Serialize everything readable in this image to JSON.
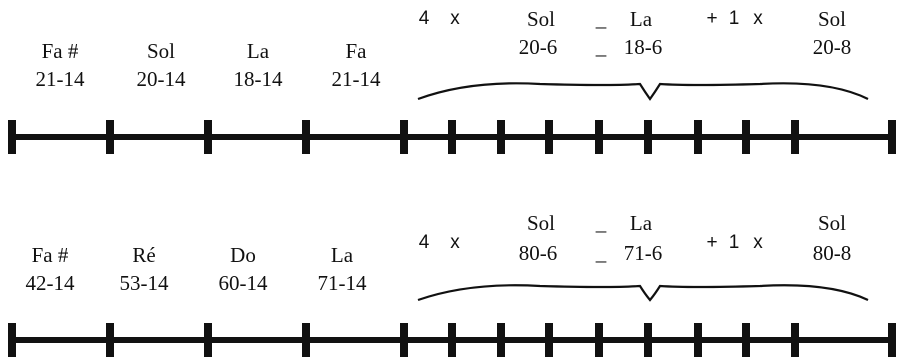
{
  "colors": {
    "ink": "#111111",
    "background": "#ffffff"
  },
  "rows": [
    {
      "notes": [
        {
          "name": "Fa #",
          "value": "21-14"
        },
        {
          "name": "Sol",
          "value": "20-14"
        },
        {
          "name": "La",
          "value": "18-14"
        },
        {
          "name": "Fa",
          "value": "21-14"
        }
      ],
      "group": {
        "multiplier_a": "4",
        "times_a": "x",
        "note_a": "Sol",
        "value_a": "20-6",
        "dash_top": "_",
        "note_b": "La",
        "dash_bottom": "_",
        "value_b": "18-6",
        "plus": "+",
        "multiplier_b": "1",
        "times_b": "x",
        "note_c": "Sol",
        "value_c": "20-8"
      }
    },
    {
      "notes": [
        {
          "name": "Fa #",
          "value": "42-14"
        },
        {
          "name": "Ré",
          "value": "53-14"
        },
        {
          "name": "Do",
          "value": "60-14"
        },
        {
          "name": "La",
          "value": "71-14"
        }
      ],
      "group": {
        "multiplier_a": "4",
        "times_a": "x",
        "note_a": "Sol",
        "value_a": "80-6",
        "dash_top": "_",
        "note_b": "La",
        "dash_bottom": "_",
        "value_b": "71-6",
        "plus": "+",
        "multiplier_b": "1",
        "times_b": "x",
        "note_c": "Sol",
        "value_c": "80-8"
      }
    }
  ]
}
